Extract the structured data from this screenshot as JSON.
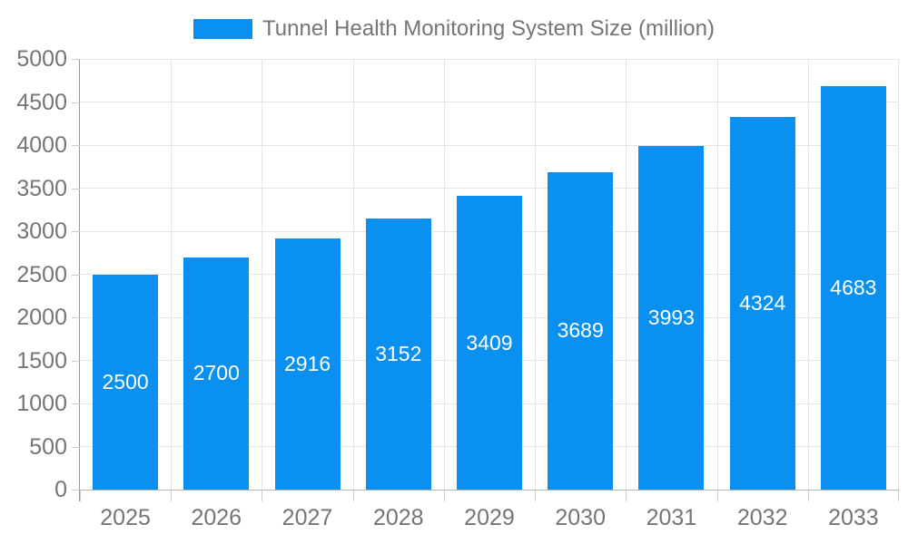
{
  "legend": {
    "label": "Tunnel Health Monitoring System Size (million)",
    "swatch_color": "#0a90f1"
  },
  "chart_data": {
    "type": "bar",
    "title": "Tunnel Health Monitoring System Size (million)",
    "categories": [
      "2025",
      "2026",
      "2027",
      "2028",
      "2029",
      "2030",
      "2031",
      "2032",
      "2033"
    ],
    "values": [
      2500,
      2700,
      2916,
      3152,
      3409,
      3689,
      3993,
      4324,
      4683
    ],
    "xlabel": "",
    "ylabel": "",
    "ylim": [
      0,
      5000
    ],
    "yticks": [
      0,
      500,
      1000,
      1500,
      2000,
      2500,
      3000,
      3500,
      4000,
      4500,
      5000
    ],
    "grid": true,
    "legend_position": "top",
    "bar_color": "#0a90f1",
    "value_label_color": "#ffffff",
    "axis_text_color": "#757575",
    "gridline_color": "#e6e6e6"
  }
}
